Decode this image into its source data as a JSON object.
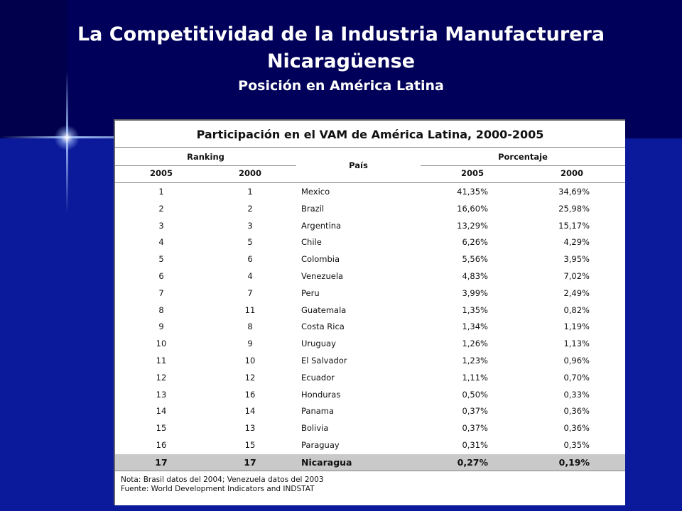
{
  "slide": {
    "title": "La Competitividad de la Industria Manufacturera Nicaragüense",
    "subtitle": "Posición en América Latina"
  },
  "table": {
    "title": "Participación en el VAM de América Latina, 2000-2005",
    "group_ranking": "Ranking",
    "group_pais": "País",
    "group_porcentaje": "Porcentaje",
    "col_2005": "2005",
    "col_2000": "2000",
    "rows": [
      {
        "r2005": "1",
        "r2000": "1",
        "pais": "Mexico",
        "p2005": "41,35%",
        "p2000": "34,69%"
      },
      {
        "r2005": "2",
        "r2000": "2",
        "pais": "Brazil",
        "p2005": "16,60%",
        "p2000": "25,98%"
      },
      {
        "r2005": "3",
        "r2000": "3",
        "pais": "Argentina",
        "p2005": "13,29%",
        "p2000": "15,17%"
      },
      {
        "r2005": "4",
        "r2000": "5",
        "pais": "Chile",
        "p2005": "6,26%",
        "p2000": "4,29%"
      },
      {
        "r2005": "5",
        "r2000": "6",
        "pais": "Colombia",
        "p2005": "5,56%",
        "p2000": "3,95%"
      },
      {
        "r2005": "6",
        "r2000": "4",
        "pais": "Venezuela",
        "p2005": "4,83%",
        "p2000": "7,02%"
      },
      {
        "r2005": "7",
        "r2000": "7",
        "pais": "Peru",
        "p2005": "3,99%",
        "p2000": "2,49%"
      },
      {
        "r2005": "8",
        "r2000": "11",
        "pais": "Guatemala",
        "p2005": "1,35%",
        "p2000": "0,82%"
      },
      {
        "r2005": "9",
        "r2000": "8",
        "pais": "Costa Rica",
        "p2005": "1,34%",
        "p2000": "1,19%"
      },
      {
        "r2005": "10",
        "r2000": "9",
        "pais": "Uruguay",
        "p2005": "1,26%",
        "p2000": "1,13%"
      },
      {
        "r2005": "11",
        "r2000": "10",
        "pais": "El Salvador",
        "p2005": "1,23%",
        "p2000": "0,96%"
      },
      {
        "r2005": "12",
        "r2000": "12",
        "pais": "Ecuador",
        "p2005": "1,11%",
        "p2000": "0,70%"
      },
      {
        "r2005": "13",
        "r2000": "16",
        "pais": "Honduras",
        "p2005": "0,50%",
        "p2000": "0,33%"
      },
      {
        "r2005": "14",
        "r2000": "14",
        "pais": "Panama",
        "p2005": "0,37%",
        "p2000": "0,36%"
      },
      {
        "r2005": "15",
        "r2000": "13",
        "pais": "Bolivia",
        "p2005": "0,37%",
        "p2000": "0,36%"
      },
      {
        "r2005": "16",
        "r2000": "15",
        "pais": "Paraguay",
        "p2005": "0,31%",
        "p2000": "0,35%"
      },
      {
        "r2005": "17",
        "r2000": "17",
        "pais": "Nicaragua",
        "p2005": "0,27%",
        "p2000": "0,19%"
      }
    ],
    "note": "Nota: Brasil datos del 2004; Venezuela datos del 2003",
    "source": "Fuente: World Development Indicators and INDSTAT"
  }
}
